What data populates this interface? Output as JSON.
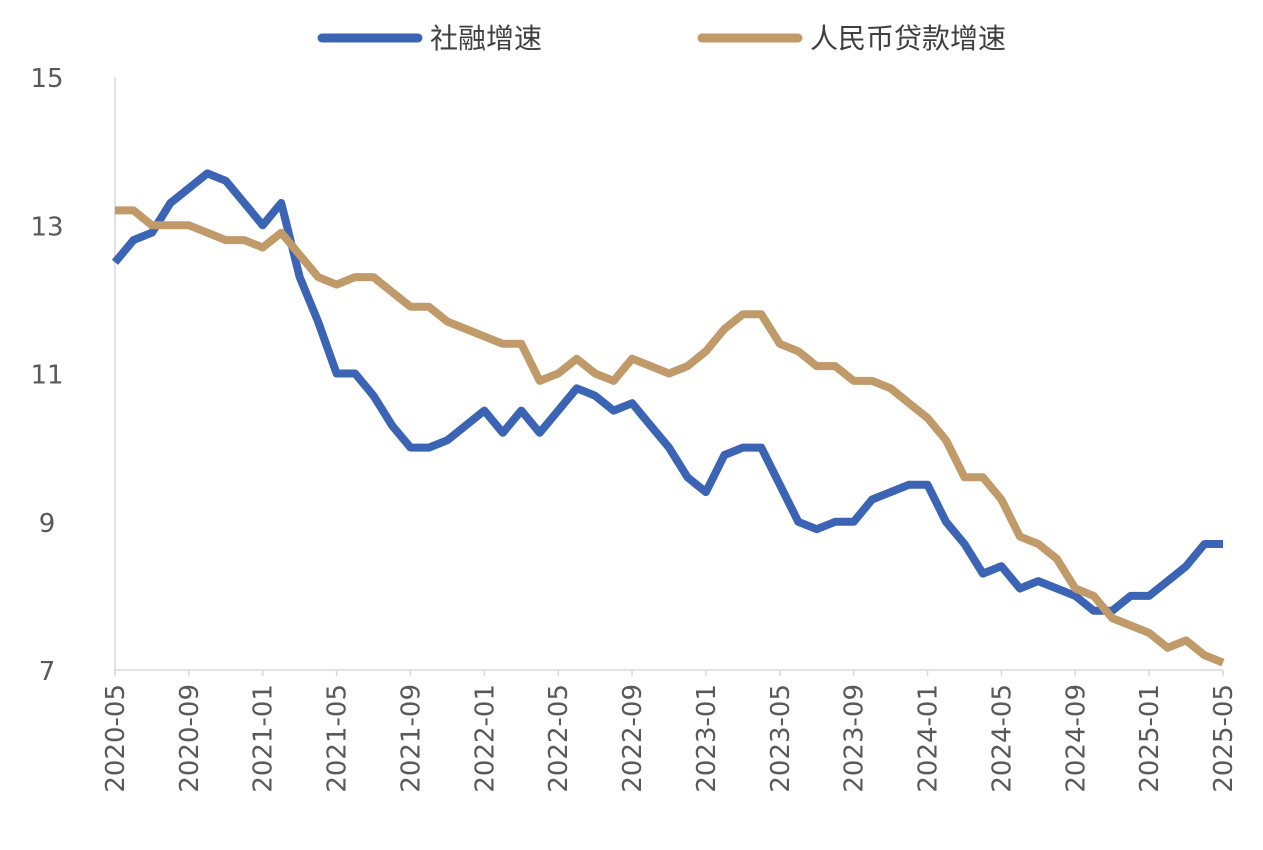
{
  "chart_data": {
    "type": "line",
    "title": "",
    "xlabel": "",
    "ylabel": "",
    "ylim": [
      7,
      15
    ],
    "yticks": [
      7,
      9,
      11,
      13,
      15
    ],
    "grid": false,
    "legend_position": "top",
    "x_tick_labels": [
      "2020-05",
      "2020-09",
      "2021-01",
      "2021-05",
      "2021-09",
      "2022-01",
      "2022-05",
      "2022-09",
      "2023-01",
      "2023-05",
      "2023-09",
      "2024-01",
      "2024-05",
      "2024-09",
      "2025-01",
      "2025-05"
    ],
    "x": [
      "2020-05",
      "2020-06",
      "2020-07",
      "2020-08",
      "2020-09",
      "2020-10",
      "2020-11",
      "2020-12",
      "2021-01",
      "2021-02",
      "2021-03",
      "2021-04",
      "2021-05",
      "2021-06",
      "2021-07",
      "2021-08",
      "2021-09",
      "2021-10",
      "2021-11",
      "2021-12",
      "2022-01",
      "2022-02",
      "2022-03",
      "2022-04",
      "2022-05",
      "2022-06",
      "2022-07",
      "2022-08",
      "2022-09",
      "2022-10",
      "2022-11",
      "2022-12",
      "2023-01",
      "2023-02",
      "2023-03",
      "2023-04",
      "2023-05",
      "2023-06",
      "2023-07",
      "2023-08",
      "2023-09",
      "2023-10",
      "2023-11",
      "2023-12",
      "2024-01",
      "2024-02",
      "2024-03",
      "2024-04",
      "2024-05",
      "2024-06",
      "2024-07",
      "2024-08",
      "2024-09",
      "2024-10",
      "2024-11",
      "2024-12",
      "2025-01",
      "2025-02",
      "2025-03",
      "2025-04",
      "2025-05"
    ],
    "series": [
      {
        "name": "社融增速",
        "color": "#3c64b4",
        "values": [
          12.5,
          12.8,
          12.9,
          13.3,
          13.5,
          13.7,
          13.6,
          13.3,
          13.0,
          13.3,
          12.3,
          11.7,
          11.0,
          11.0,
          10.7,
          10.3,
          10.0,
          10.0,
          10.1,
          10.3,
          10.5,
          10.2,
          10.5,
          10.2,
          10.5,
          10.8,
          10.7,
          10.5,
          10.6,
          10.3,
          10.0,
          9.6,
          9.4,
          9.9,
          10.0,
          10.0,
          9.5,
          9.0,
          8.9,
          9.0,
          9.0,
          9.3,
          9.4,
          9.5,
          9.5,
          9.0,
          8.7,
          8.3,
          8.4,
          8.1,
          8.2,
          8.1,
          8.0,
          7.8,
          7.8,
          8.0,
          8.0,
          8.2,
          8.4,
          8.7,
          8.7
        ]
      },
      {
        "name": "人民币贷款增速",
        "color": "#c09a68",
        "values": [
          13.2,
          13.2,
          13.0,
          13.0,
          13.0,
          12.9,
          12.8,
          12.8,
          12.7,
          12.9,
          12.6,
          12.3,
          12.2,
          12.3,
          12.3,
          12.1,
          11.9,
          11.9,
          11.7,
          11.6,
          11.5,
          11.4,
          11.4,
          10.9,
          11.0,
          11.2,
          11.0,
          10.9,
          11.2,
          11.1,
          11.0,
          11.1,
          11.3,
          11.6,
          11.8,
          11.8,
          11.4,
          11.3,
          11.1,
          11.1,
          10.9,
          10.9,
          10.8,
          10.6,
          10.4,
          10.1,
          9.6,
          9.6,
          9.3,
          8.8,
          8.7,
          8.5,
          8.1,
          8.0,
          7.7,
          7.6,
          7.5,
          7.3,
          7.4,
          7.2,
          7.1
        ]
      }
    ]
  }
}
